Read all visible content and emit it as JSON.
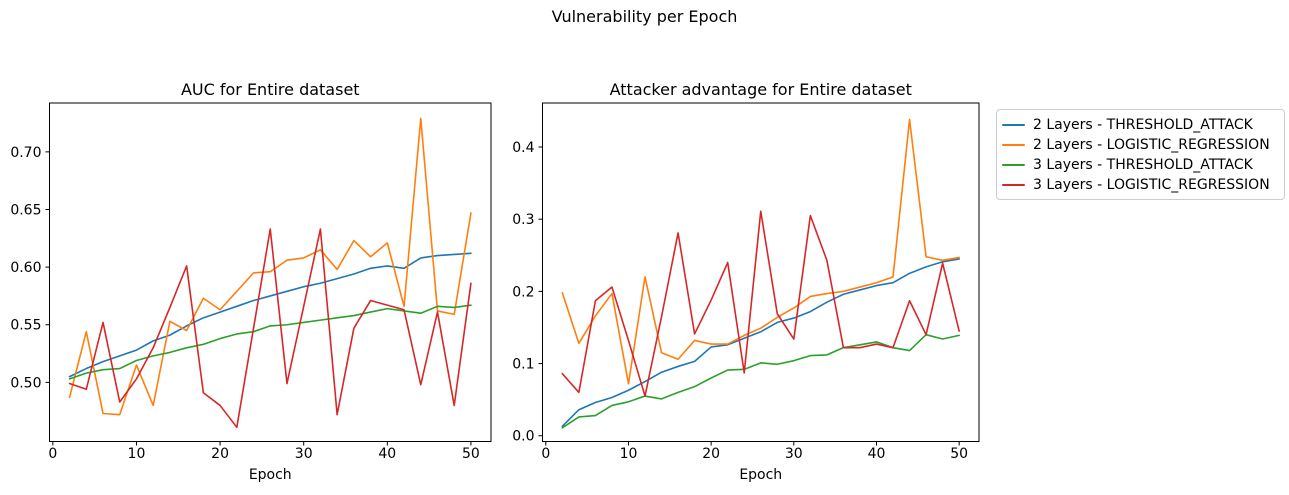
{
  "figure_title": "Vulnerability per Epoch",
  "colors": {
    "blue": "#1f77b4",
    "orange": "#ff7f0e",
    "green": "#2ca02c",
    "red": "#d62728",
    "axis": "#000000",
    "legend_border": "#cccccc"
  },
  "legend": {
    "position": "outside-right",
    "entries": [
      {
        "label": "2 Layers - THRESHOLD_ATTACK",
        "color": "#1f77b4"
      },
      {
        "label": "2 Layers - LOGISTIC_REGRESSION",
        "color": "#ff7f0e"
      },
      {
        "label": "3 Layers - THRESHOLD_ATTACK",
        "color": "#2ca02c"
      },
      {
        "label": "3 Layers - LOGISTIC_REGRESSION",
        "color": "#d62728"
      }
    ]
  },
  "chart_data": [
    {
      "type": "line",
      "title": "AUC for Entire dataset",
      "xlabel": "Epoch",
      "ylabel": "",
      "grid": false,
      "x": [
        2,
        4,
        6,
        8,
        10,
        12,
        14,
        16,
        18,
        20,
        22,
        24,
        26,
        28,
        30,
        32,
        34,
        36,
        38,
        40,
        42,
        44,
        46,
        48,
        50
      ],
      "xlim": [
        -0.4,
        52.4
      ],
      "ylim": [
        0.4487,
        0.7424
      ],
      "xticks": [
        0,
        10,
        20,
        30,
        40,
        50
      ],
      "xtick_labels": [
        "0",
        "10",
        "20",
        "30",
        "40",
        "50"
      ],
      "yticks": [
        0.5,
        0.55,
        0.6,
        0.65,
        0.7
      ],
      "ytick_labels": [
        "0.50",
        "0.55",
        "0.60",
        "0.65",
        "0.70"
      ],
      "series": [
        {
          "name": "2 Layers - THRESHOLD_ATTACK",
          "color": "#1f77b4",
          "values": [
            0.505,
            0.512,
            0.518,
            0.523,
            0.528,
            0.536,
            0.541,
            0.549,
            0.556,
            0.561,
            0.566,
            0.571,
            0.575,
            0.579,
            0.583,
            0.586,
            0.59,
            0.594,
            0.599,
            0.601,
            0.599,
            0.608,
            0.61,
            0.611,
            0.612
          ]
        },
        {
          "name": "2 Layers - LOGISTIC_REGRESSION",
          "color": "#ff7f0e",
          "values": [
            0.487,
            0.544,
            0.473,
            0.472,
            0.515,
            0.48,
            0.553,
            0.545,
            0.573,
            0.563,
            0.579,
            0.595,
            0.596,
            0.606,
            0.608,
            0.615,
            0.598,
            0.623,
            0.609,
            0.621,
            0.566,
            0.729,
            0.562,
            0.559,
            0.647
          ]
        },
        {
          "name": "3 Layers - THRESHOLD_ATTACK",
          "color": "#2ca02c",
          "values": [
            0.503,
            0.508,
            0.511,
            0.512,
            0.519,
            0.523,
            0.526,
            0.53,
            0.533,
            0.538,
            0.542,
            0.544,
            0.549,
            0.55,
            0.552,
            0.554,
            0.556,
            0.558,
            0.561,
            0.564,
            0.562,
            0.56,
            0.566,
            0.565,
            0.567
          ]
        },
        {
          "name": "3 Layers - LOGISTIC_REGRESSION",
          "color": "#d62728",
          "values": [
            0.499,
            0.494,
            0.552,
            0.483,
            0.503,
            0.53,
            0.565,
            0.601,
            0.491,
            0.48,
            0.461,
            0.547,
            0.633,
            0.499,
            0.566,
            0.633,
            0.472,
            0.547,
            0.571,
            0.567,
            0.563,
            0.498,
            0.561,
            0.48,
            0.586
          ]
        }
      ]
    },
    {
      "type": "line",
      "title": "Attacker advantage for Entire dataset",
      "xlabel": "Epoch",
      "ylabel": "",
      "grid": false,
      "x": [
        2,
        4,
        6,
        8,
        10,
        12,
        14,
        16,
        18,
        20,
        22,
        24,
        26,
        28,
        30,
        32,
        34,
        36,
        38,
        40,
        42,
        44,
        46,
        48,
        50
      ],
      "xlim": [
        -0.4,
        52.4
      ],
      "ylim": [
        -0.008,
        0.461
      ],
      "xticks": [
        0,
        10,
        20,
        30,
        40,
        50
      ],
      "xtick_labels": [
        "0",
        "10",
        "20",
        "30",
        "40",
        "50"
      ],
      "yticks": [
        0.0,
        0.1,
        0.2,
        0.3,
        0.4
      ],
      "ytick_labels": [
        "0.0",
        "0.1",
        "0.2",
        "0.3",
        "0.4"
      ],
      "series": [
        {
          "name": "2 Layers - THRESHOLD_ATTACK",
          "color": "#1f77b4",
          "values": [
            0.013,
            0.036,
            0.046,
            0.053,
            0.063,
            0.075,
            0.088,
            0.096,
            0.103,
            0.123,
            0.126,
            0.135,
            0.144,
            0.157,
            0.163,
            0.172,
            0.185,
            0.196,
            0.202,
            0.208,
            0.212,
            0.225,
            0.234,
            0.241,
            0.245
          ]
        },
        {
          "name": "2 Layers - LOGISTIC_REGRESSION",
          "color": "#ff7f0e",
          "values": [
            0.198,
            0.128,
            0.166,
            0.197,
            0.072,
            0.22,
            0.115,
            0.106,
            0.132,
            0.127,
            0.127,
            0.139,
            0.149,
            0.164,
            0.177,
            0.193,
            0.197,
            0.2,
            0.206,
            0.212,
            0.22,
            0.438,
            0.248,
            0.243,
            0.247
          ]
        },
        {
          "name": "3 Layers - THRESHOLD_ATTACK",
          "color": "#2ca02c",
          "values": [
            0.011,
            0.026,
            0.028,
            0.042,
            0.047,
            0.055,
            0.051,
            0.06,
            0.068,
            0.08,
            0.091,
            0.092,
            0.101,
            0.099,
            0.104,
            0.111,
            0.112,
            0.122,
            0.126,
            0.13,
            0.122,
            0.118,
            0.14,
            0.134,
            0.139
          ]
        },
        {
          "name": "3 Layers - LOGISTIC_REGRESSION",
          "color": "#d62728",
          "values": [
            0.086,
            0.06,
            0.187,
            0.206,
            0.132,
            0.055,
            0.165,
            0.281,
            0.141,
            0.188,
            0.24,
            0.087,
            0.311,
            0.169,
            0.134,
            0.305,
            0.243,
            0.122,
            0.122,
            0.127,
            0.122,
            0.187,
            0.14,
            0.239,
            0.145
          ]
        }
      ]
    }
  ]
}
